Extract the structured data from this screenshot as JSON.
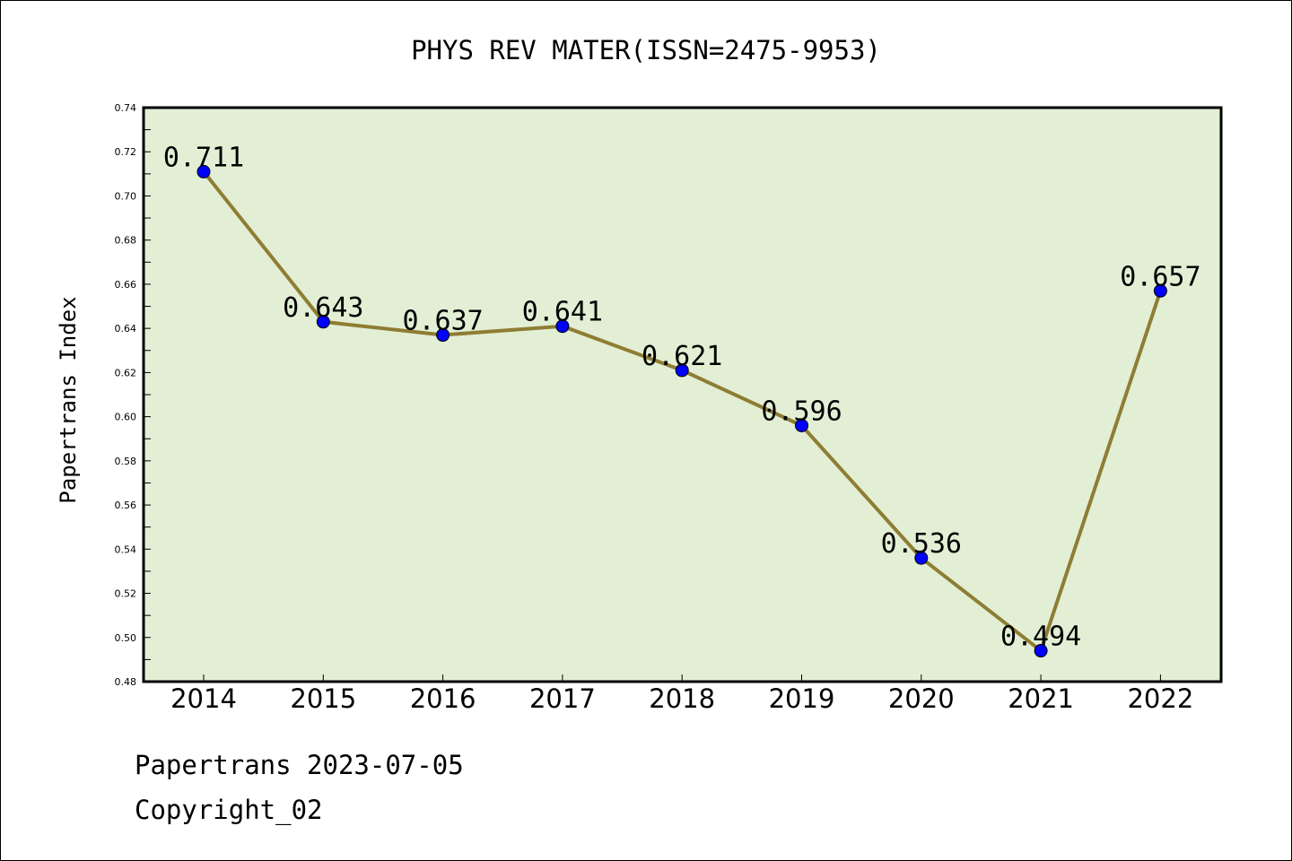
{
  "chart_data": {
    "type": "line",
    "title": "PHYS REV MATER(ISSN=2475-9953)",
    "xlabel": "",
    "ylabel": "Papertrans Index",
    "categories": [
      "2014",
      "2015",
      "2016",
      "2017",
      "2018",
      "2019",
      "2020",
      "2021",
      "2022"
    ],
    "values": [
      0.711,
      0.643,
      0.637,
      0.641,
      0.621,
      0.596,
      0.536,
      0.494,
      0.657
    ],
    "data_labels": [
      "0.711",
      "0.643",
      "0.637",
      "0.641",
      "0.621",
      "0.596",
      "0.536",
      "0.494",
      "0.657"
    ],
    "ylim": [
      0.48,
      0.74
    ],
    "yticks": [
      "0.48",
      "0.50",
      "0.52",
      "0.54",
      "0.56",
      "0.58",
      "0.60",
      "0.62",
      "0.64",
      "0.66",
      "0.68",
      "0.70",
      "0.72",
      "0.74"
    ],
    "grid": false,
    "colors": {
      "plot_background": "#e2efd5",
      "line": "#8e7d33",
      "marker": "#0000ff"
    }
  },
  "footer": {
    "line1": "Papertrans 2023-07-05",
    "line2": "Copyright_02"
  }
}
